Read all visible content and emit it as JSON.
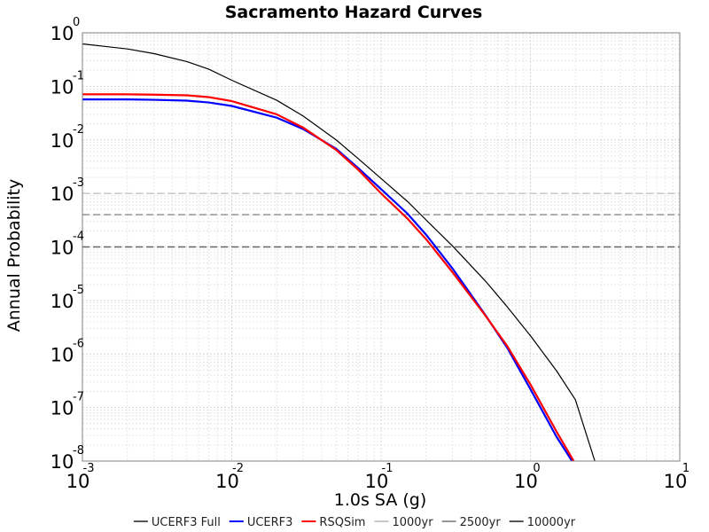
{
  "chart_data": {
    "type": "line",
    "title": "Sacramento Hazard Curves",
    "xlabel": "1.0s SA (g)",
    "ylabel": "Annual Probability",
    "x_scale": "log",
    "y_scale": "log",
    "xlim": [
      0.001,
      10
    ],
    "ylim": [
      1e-08,
      1
    ],
    "grid": true,
    "legend_position": "bottom",
    "x_ticks": [
      {
        "base": "10",
        "exp": "-3",
        "value": 0.001
      },
      {
        "base": "10",
        "exp": "-2",
        "value": 0.01
      },
      {
        "base": "10",
        "exp": "-1",
        "value": 0.1
      },
      {
        "base": "10",
        "exp": "0",
        "value": 1
      },
      {
        "base": "10",
        "exp": "1",
        "value": 10
      }
    ],
    "y_ticks": [
      {
        "base": "10",
        "exp": "0",
        "value": 1
      },
      {
        "base": "10",
        "exp": "-1",
        "value": 0.1
      },
      {
        "base": "10",
        "exp": "-2",
        "value": 0.01
      },
      {
        "base": "10",
        "exp": "-3",
        "value": 0.001
      },
      {
        "base": "10",
        "exp": "-4",
        "value": 0.0001
      },
      {
        "base": "10",
        "exp": "-5",
        "value": 1e-05
      },
      {
        "base": "10",
        "exp": "-6",
        "value": 1e-06
      },
      {
        "base": "10",
        "exp": "-7",
        "value": 1e-07
      },
      {
        "base": "10",
        "exp": "-8",
        "value": 1e-08
      }
    ],
    "series": [
      {
        "name": "UCERF3 Full",
        "color": "#000000",
        "x": [
          0.001,
          0.002,
          0.003,
          0.005,
          0.007,
          0.01,
          0.02,
          0.03,
          0.05,
          0.07,
          0.1,
          0.15,
          0.2,
          0.3,
          0.5,
          0.7,
          1.0,
          1.5,
          2.0,
          2.7
        ],
        "y": [
          0.62,
          0.5,
          0.41,
          0.29,
          0.21,
          0.13,
          0.055,
          0.028,
          0.01,
          0.0045,
          0.0019,
          0.00071,
          0.00032,
          0.000105,
          2.3e-05,
          7.6e-06,
          2.2e-06,
          4.8e-07,
          1.4e-07,
          1e-08
        ]
      },
      {
        "name": "UCERF3",
        "color": "#0000ff",
        "x": [
          0.001,
          0.002,
          0.003,
          0.005,
          0.007,
          0.01,
          0.02,
          0.03,
          0.05,
          0.07,
          0.1,
          0.15,
          0.2,
          0.3,
          0.5,
          0.7,
          1.0,
          1.5,
          1.9
        ],
        "y": [
          0.057,
          0.057,
          0.056,
          0.054,
          0.05,
          0.043,
          0.026,
          0.016,
          0.0068,
          0.003,
          0.0012,
          0.00042,
          0.00017,
          4e-05,
          5.3e-06,
          1.3e-06,
          2.2e-07,
          2.8e-08,
          1e-08
        ]
      },
      {
        "name": "RSQSim",
        "color": "#ff0000",
        "x": [
          0.001,
          0.002,
          0.003,
          0.005,
          0.007,
          0.01,
          0.02,
          0.03,
          0.05,
          0.07,
          0.1,
          0.15,
          0.2,
          0.3,
          0.5,
          0.7,
          1.0,
          1.5,
          1.95
        ],
        "y": [
          0.071,
          0.071,
          0.07,
          0.068,
          0.063,
          0.053,
          0.03,
          0.017,
          0.0065,
          0.0028,
          0.001,
          0.00034,
          0.00014,
          3.4e-05,
          5.2e-06,
          1.4e-06,
          2.7e-07,
          3.5e-08,
          1e-08
        ]
      }
    ],
    "reference_lines": [
      {
        "name": "1000yr",
        "y": 0.001,
        "color": "#c8c8c8"
      },
      {
        "name": "2500yr",
        "y": 0.0004,
        "color": "#969696"
      },
      {
        "name": "10000yr",
        "y": 0.0001,
        "color": "#646464"
      }
    ],
    "legend": [
      {
        "label": "UCERF3 Full",
        "color": "#555555",
        "style": "solid"
      },
      {
        "label": "UCERF3",
        "color": "#0000ff",
        "style": "solid"
      },
      {
        "label": "RSQSim",
        "color": "#ff0000",
        "style": "solid"
      },
      {
        "label": "1000yr",
        "color": "#c8c8c8",
        "style": "solid"
      },
      {
        "label": "2500yr",
        "color": "#969696",
        "style": "solid"
      },
      {
        "label": "10000yr",
        "color": "#555555",
        "style": "solid"
      }
    ]
  }
}
